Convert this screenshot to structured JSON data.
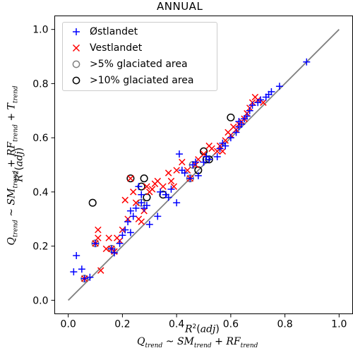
{
  "chart_data": {
    "type": "scatter",
    "title": "ANNUAL",
    "xlim": [
      -0.05,
      1.05
    ],
    "ylim": [
      -0.05,
      1.05
    ],
    "xticks": [
      "0.0",
      "0.2",
      "0.4",
      "0.6",
      "0.8",
      "1.0"
    ],
    "yticks": [
      "0.0",
      "0.2",
      "0.4",
      "0.6",
      "0.8",
      "1.0"
    ],
    "xlabel_line1": "R²(adj)",
    "xlabel_line2": "Q_trend ~ SM_trend + RF_trend",
    "ylabel_line1": "Q_trend ~ SM_trend + RF_trend + T_trend",
    "ylabel_line2": "R²(adj)",
    "reference_line": {
      "x": [
        0,
        1
      ],
      "y": [
        0,
        1
      ],
      "color": "#808080"
    },
    "legend": {
      "position": "top-left",
      "entries": [
        {
          "label": "Østlandet",
          "marker": "plus",
          "color": "#0000ff"
        },
        {
          "label": "Vestlandet",
          "marker": "x",
          "color": "#ff0000"
        },
        {
          "label": ">5% glaciated area",
          "marker": "circle",
          "color": "#808080"
        },
        {
          "label": ">10% glaciated area",
          "marker": "circle",
          "color": "#000000"
        }
      ]
    },
    "series": [
      {
        "name": "Østlandet",
        "marker": "plus",
        "color": "#0000ff",
        "points": [
          [
            0.02,
            0.105
          ],
          [
            0.03,
            0.165
          ],
          [
            0.05,
            0.115
          ],
          [
            0.06,
            0.08
          ],
          [
            0.08,
            0.085
          ],
          [
            0.1,
            0.21
          ],
          [
            0.16,
            0.19
          ],
          [
            0.17,
            0.175
          ],
          [
            0.19,
            0.21
          ],
          [
            0.2,
            0.24
          ],
          [
            0.21,
            0.26
          ],
          [
            0.22,
            0.29
          ],
          [
            0.23,
            0.33
          ],
          [
            0.23,
            0.25
          ],
          [
            0.24,
            0.31
          ],
          [
            0.25,
            0.34
          ],
          [
            0.26,
            0.42
          ],
          [
            0.27,
            0.36
          ],
          [
            0.27,
            0.39
          ],
          [
            0.28,
            0.34
          ],
          [
            0.29,
            0.35
          ],
          [
            0.3,
            0.28
          ],
          [
            0.33,
            0.31
          ],
          [
            0.34,
            0.4
          ],
          [
            0.36,
            0.39
          ],
          [
            0.37,
            0.38
          ],
          [
            0.38,
            0.41
          ],
          [
            0.4,
            0.36
          ],
          [
            0.41,
            0.54
          ],
          [
            0.42,
            0.48
          ],
          [
            0.43,
            0.47
          ],
          [
            0.45,
            0.45
          ],
          [
            0.46,
            0.5
          ],
          [
            0.47,
            0.51
          ],
          [
            0.48,
            0.46
          ],
          [
            0.5,
            0.51
          ],
          [
            0.51,
            0.53
          ],
          [
            0.52,
            0.52
          ],
          [
            0.55,
            0.53
          ],
          [
            0.56,
            0.56
          ],
          [
            0.57,
            0.58
          ],
          [
            0.58,
            0.57
          ],
          [
            0.6,
            0.6
          ],
          [
            0.62,
            0.62
          ],
          [
            0.63,
            0.64
          ],
          [
            0.63,
            0.66
          ],
          [
            0.64,
            0.65
          ],
          [
            0.65,
            0.67
          ],
          [
            0.66,
            0.68
          ],
          [
            0.67,
            0.7
          ],
          [
            0.68,
            0.72
          ],
          [
            0.7,
            0.73
          ],
          [
            0.71,
            0.74
          ],
          [
            0.73,
            0.75
          ],
          [
            0.74,
            0.76
          ],
          [
            0.75,
            0.77
          ],
          [
            0.78,
            0.79
          ],
          [
            0.88,
            0.88
          ]
        ]
      },
      {
        "name": "Vestlandet",
        "marker": "x",
        "color": "#ff0000",
        "points": [
          [
            0.06,
            0.08
          ],
          [
            0.1,
            0.21
          ],
          [
            0.11,
            0.26
          ],
          [
            0.11,
            0.23
          ],
          [
            0.12,
            0.11
          ],
          [
            0.14,
            0.19
          ],
          [
            0.15,
            0.23
          ],
          [
            0.16,
            0.19
          ],
          [
            0.17,
            0.18
          ],
          [
            0.18,
            0.23
          ],
          [
            0.19,
            0.22
          ],
          [
            0.2,
            0.26
          ],
          [
            0.21,
            0.37
          ],
          [
            0.22,
            0.3
          ],
          [
            0.23,
            0.45
          ],
          [
            0.24,
            0.4
          ],
          [
            0.25,
            0.36
          ],
          [
            0.26,
            0.3
          ],
          [
            0.27,
            0.29
          ],
          [
            0.28,
            0.33
          ],
          [
            0.29,
            0.42
          ],
          [
            0.3,
            0.4
          ],
          [
            0.31,
            0.41
          ],
          [
            0.32,
            0.43
          ],
          [
            0.33,
            0.44
          ],
          [
            0.35,
            0.42
          ],
          [
            0.37,
            0.47
          ],
          [
            0.38,
            0.44
          ],
          [
            0.39,
            0.42
          ],
          [
            0.4,
            0.48
          ],
          [
            0.42,
            0.51
          ],
          [
            0.44,
            0.48
          ],
          [
            0.45,
            0.45
          ],
          [
            0.47,
            0.5
          ],
          [
            0.48,
            0.52
          ],
          [
            0.5,
            0.54
          ],
          [
            0.52,
            0.57
          ],
          [
            0.53,
            0.56
          ],
          [
            0.55,
            0.55
          ],
          [
            0.56,
            0.57
          ],
          [
            0.57,
            0.55
          ],
          [
            0.58,
            0.59
          ],
          [
            0.59,
            0.62
          ],
          [
            0.6,
            0.61
          ],
          [
            0.61,
            0.64
          ],
          [
            0.62,
            0.63
          ],
          [
            0.63,
            0.65
          ],
          [
            0.64,
            0.66
          ],
          [
            0.65,
            0.67
          ],
          [
            0.66,
            0.69
          ],
          [
            0.67,
            0.71
          ],
          [
            0.68,
            0.73
          ],
          [
            0.69,
            0.75
          ],
          [
            0.7,
            0.74
          ],
          [
            0.72,
            0.73
          ]
        ]
      },
      {
        "name": ">5% glaciated area",
        "marker": "circle",
        "color": "#808080",
        "points": [
          [
            0.1,
            0.21
          ],
          [
            0.16,
            0.19
          ],
          [
            0.27,
            0.36
          ],
          [
            0.45,
            0.45
          ],
          [
            0.46,
            0.5
          ],
          [
            0.06,
            0.08
          ]
        ]
      },
      {
        "name": ">10% glaciated area",
        "marker": "circle",
        "color": "#000000",
        "points": [
          [
            0.09,
            0.36
          ],
          [
            0.23,
            0.45
          ],
          [
            0.27,
            0.42
          ],
          [
            0.28,
            0.45
          ],
          [
            0.29,
            0.38
          ],
          [
            0.35,
            0.39
          ],
          [
            0.48,
            0.48
          ],
          [
            0.5,
            0.55
          ],
          [
            0.51,
            0.52
          ],
          [
            0.52,
            0.52
          ],
          [
            0.6,
            0.675
          ]
        ]
      }
    ]
  }
}
